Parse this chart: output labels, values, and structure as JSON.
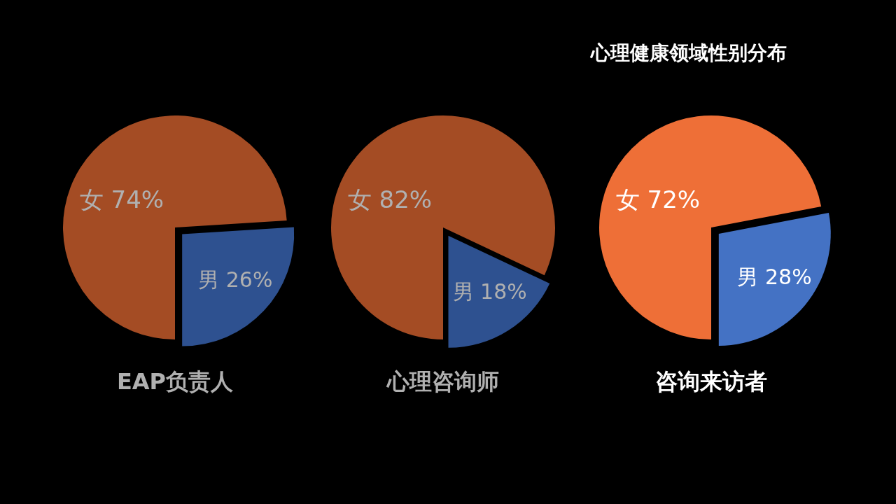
{
  "chart_data": [
    {
      "type": "pie",
      "title": "EAP负责人",
      "categories": [
        "女",
        "男"
      ],
      "values": [
        74,
        26
      ],
      "value_labels": [
        "74%",
        "26%"
      ],
      "colors": [
        "#a44c24",
        "#2e5190"
      ],
      "legend": false
    },
    {
      "type": "pie",
      "title": "心理咨询师",
      "categories": [
        "女",
        "男"
      ],
      "values": [
        82,
        18
      ],
      "value_labels": [
        "82%",
        "18%"
      ],
      "colors": [
        "#a44c24",
        "#2e5190"
      ],
      "legend": false
    },
    {
      "type": "pie",
      "title": "咨询来访者",
      "subtitle": "心理健康领域性别分布",
      "categories": [
        "女",
        "男"
      ],
      "values": [
        72,
        28
      ],
      "value_labels": [
        "72%",
        "28%"
      ],
      "colors": [
        "#ee6f37",
        "#4472c4"
      ],
      "legend": false
    }
  ]
}
